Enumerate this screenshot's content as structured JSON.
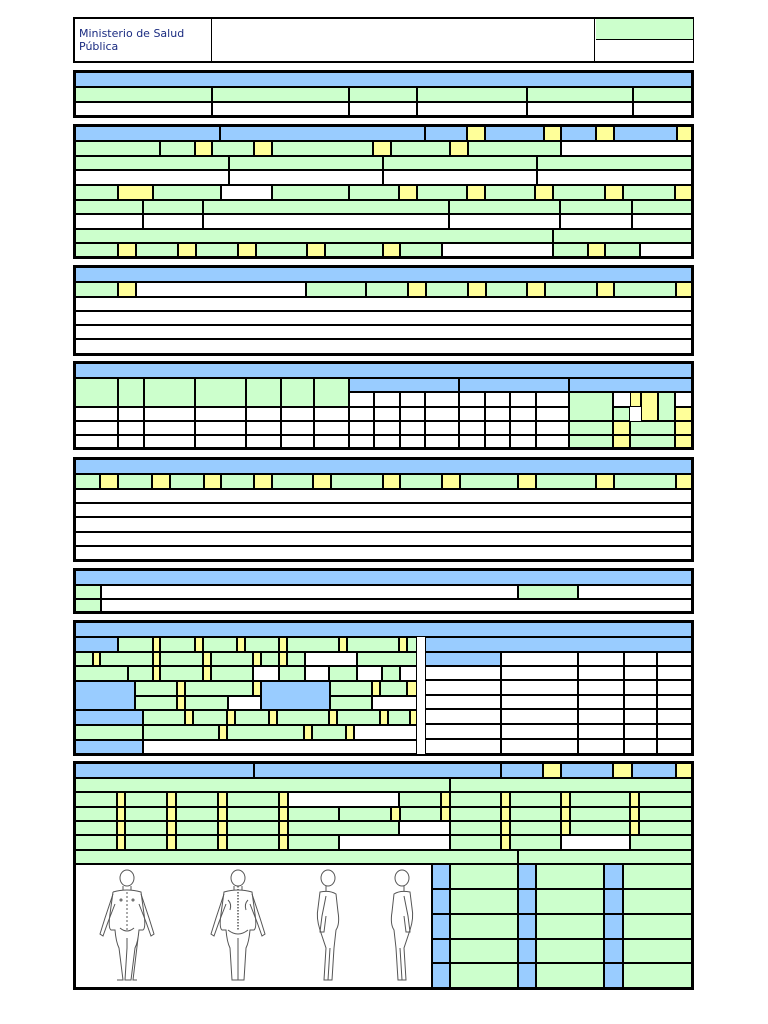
{
  "header": {
    "institution": "Ministerio de Salud Pública"
  },
  "colors": {
    "green": "#ccffcc",
    "blue": "#99ccff",
    "yellow": "#ffff99",
    "white": "#ffffff",
    "border": "#000000"
  },
  "body_diagram": {
    "views": [
      "body-front-view-icon",
      "body-back-view-icon",
      "body-right-side-view-icon",
      "body-left-side-view-icon"
    ]
  }
}
